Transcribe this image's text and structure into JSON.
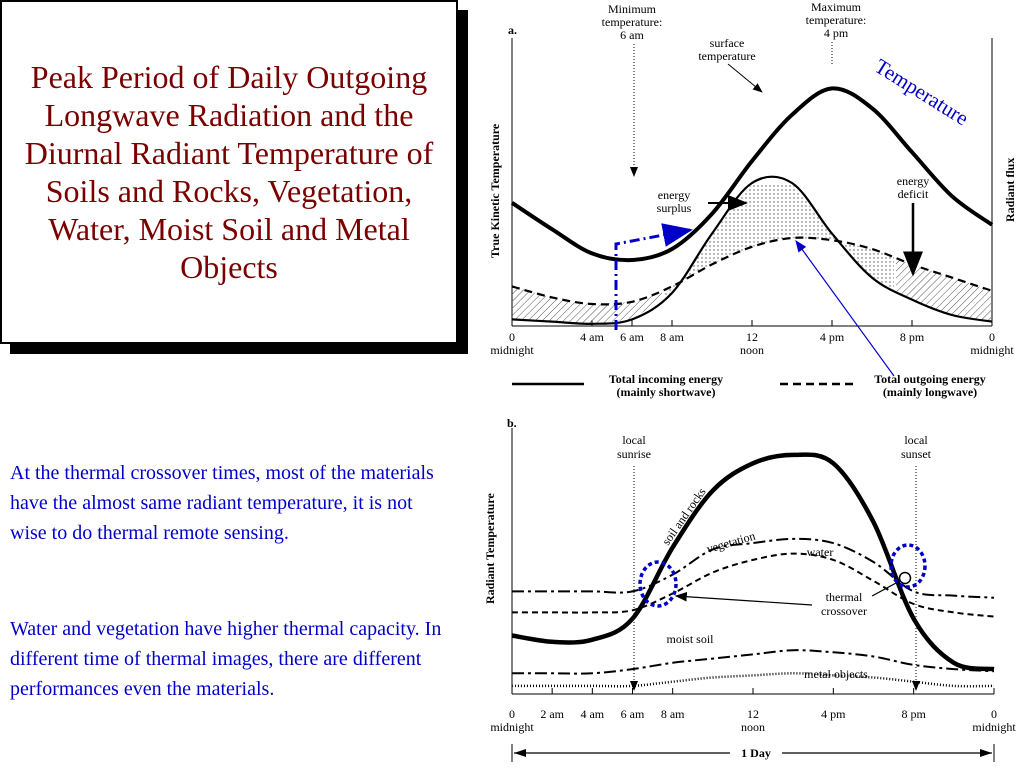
{
  "title": "Peak Period of Daily Outgoing Longwave Radiation and the Diurnal Radiant Temperature of Soils and Rocks, Vegetation, Water, Moist Soil and Metal Objects",
  "paragraphs": [
    "At the thermal crossover times, most of the materials have the almost same radiant temperature, it is not wise to do thermal remote sensing.",
    "Water and vegetation have higher thermal capacity. In different time of thermal images, there are different performances even the materials."
  ],
  "colors": {
    "title": "#7a0000",
    "body_text": "#0000c8",
    "annotation": "#0000c8"
  },
  "chart_data": [
    {
      "type": "line",
      "panel_label": "a.",
      "ylabel": "True Kinetic Temperature",
      "y2label": "Radiant  flux",
      "x_ticks": [
        {
          "hour": 0,
          "label": "0",
          "sub": "midnight"
        },
        {
          "hour": 4,
          "label": "4 am",
          "sub": ""
        },
        {
          "hour": 6,
          "label": "6 am",
          "sub": ""
        },
        {
          "hour": 8,
          "label": "8 am",
          "sub": ""
        },
        {
          "hour": 12,
          "label": "12",
          "sub": "noon"
        },
        {
          "hour": 16,
          "label": "4 pm",
          "sub": ""
        },
        {
          "hour": 20,
          "label": "8 pm",
          "sub": ""
        },
        {
          "hour": 24,
          "label": "0",
          "sub": "midnight"
        }
      ],
      "series": [
        {
          "name": "surface temperature",
          "x": [
            0,
            2,
            4,
            6,
            8,
            10,
            12,
            14,
            16,
            18,
            20,
            22,
            24
          ],
          "values": [
            5.6,
            4.4,
            3.3,
            3.0,
            3.5,
            5.1,
            7.5,
            9.6,
            10.8,
            9.9,
            7.9,
            5.9,
            4.6
          ]
        },
        {
          "name": "Total incoming energy",
          "x": [
            0,
            2,
            4,
            6,
            8,
            10,
            12,
            14,
            16,
            18,
            20,
            22,
            24
          ],
          "values": [
            0.3,
            0.2,
            0.1,
            0.3,
            1.5,
            4.2,
            6.5,
            6.5,
            4.2,
            2.2,
            1.2,
            0.5,
            0.2
          ]
        },
        {
          "name": "Total outgoing energy",
          "x": [
            0,
            2,
            4,
            6,
            8,
            10,
            12,
            14,
            16,
            18,
            20,
            22,
            24
          ],
          "values": [
            1.8,
            1.3,
            1.0,
            1.1,
            1.8,
            2.8,
            3.6,
            4.0,
            3.9,
            3.5,
            2.8,
            2.2,
            1.6
          ]
        }
      ],
      "annotations": {
        "min_temp": "Minimum temperature: 6 am",
        "max_temp": "Maximum temperature: 4 pm",
        "surface_temp": "surface temperature",
        "energy_surplus": "energy surplus",
        "energy_deficit": "energy deficit",
        "handwritten": "Temperature"
      },
      "legend": [
        {
          "label": "Total incoming energy",
          "sub": "(mainly shortwave)",
          "style": "solid"
        },
        {
          "label": "Total outgoing energy",
          "sub": "(mainly longwave)",
          "style": "dashed"
        }
      ]
    },
    {
      "type": "line",
      "panel_label": "b.",
      "ylabel": "Radiant Temperature",
      "x_ticks": [
        {
          "hour": 0,
          "label": "0",
          "sub": "midnight"
        },
        {
          "hour": 2,
          "label": "2 am",
          "sub": ""
        },
        {
          "hour": 4,
          "label": "4 am",
          "sub": ""
        },
        {
          "hour": 6,
          "label": "6 am",
          "sub": ""
        },
        {
          "hour": 8,
          "label": "8 am",
          "sub": ""
        },
        {
          "hour": 12,
          "label": "12",
          "sub": "noon"
        },
        {
          "hour": 16,
          "label": "4 pm",
          "sub": ""
        },
        {
          "hour": 20,
          "label": "8 pm",
          "sub": ""
        },
        {
          "hour": 24,
          "label": "0",
          "sub": "midnight"
        }
      ],
      "series": [
        {
          "name": "soil and rocks",
          "x": [
            0,
            2,
            4,
            6,
            8,
            10,
            12,
            14,
            16,
            18,
            20,
            22,
            24
          ],
          "values": [
            2.5,
            2.2,
            2.3,
            3.3,
            6.7,
            9.4,
            10.7,
            11.1,
            10.7,
            7.9,
            3.3,
            1.2,
            0.9
          ]
        },
        {
          "name": "vegetation",
          "x": [
            0,
            2,
            4,
            6,
            8,
            10,
            12,
            14,
            16,
            18,
            20,
            22,
            24
          ],
          "values": [
            4.6,
            4.6,
            4.6,
            4.6,
            5.4,
            6.6,
            6.9,
            7.1,
            6.9,
            6.0,
            4.6,
            4.4,
            4.3
          ]
        },
        {
          "name": "water",
          "x": [
            0,
            2,
            4,
            6,
            8,
            10,
            12,
            14,
            16,
            18,
            20,
            22,
            24
          ],
          "values": [
            3.6,
            3.6,
            3.6,
            3.7,
            4.5,
            5.5,
            6.1,
            6.4,
            6.1,
            5.1,
            4.0,
            3.6,
            3.4
          ]
        },
        {
          "name": "moist soil",
          "x": [
            0,
            2,
            4,
            6,
            8,
            10,
            12,
            14,
            16,
            18,
            20,
            22,
            24
          ],
          "values": [
            0.7,
            0.7,
            0.7,
            0.9,
            1.2,
            1.4,
            1.6,
            1.8,
            1.7,
            1.5,
            1.1,
            0.9,
            0.8
          ]
        },
        {
          "name": "metal objects",
          "x": [
            0,
            2,
            4,
            6,
            8,
            10,
            12,
            14,
            16,
            18,
            20,
            22,
            24
          ],
          "values": [
            0.1,
            0.1,
            0.1,
            0.1,
            0.3,
            0.5,
            0.6,
            0.7,
            0.6,
            0.5,
            0.3,
            0.1,
            0.1
          ]
        }
      ],
      "annotations": {
        "sunrise": "local sunrise",
        "sunset": "local sunset",
        "crossover": "thermal crossover",
        "day": "1 Day"
      }
    }
  ]
}
